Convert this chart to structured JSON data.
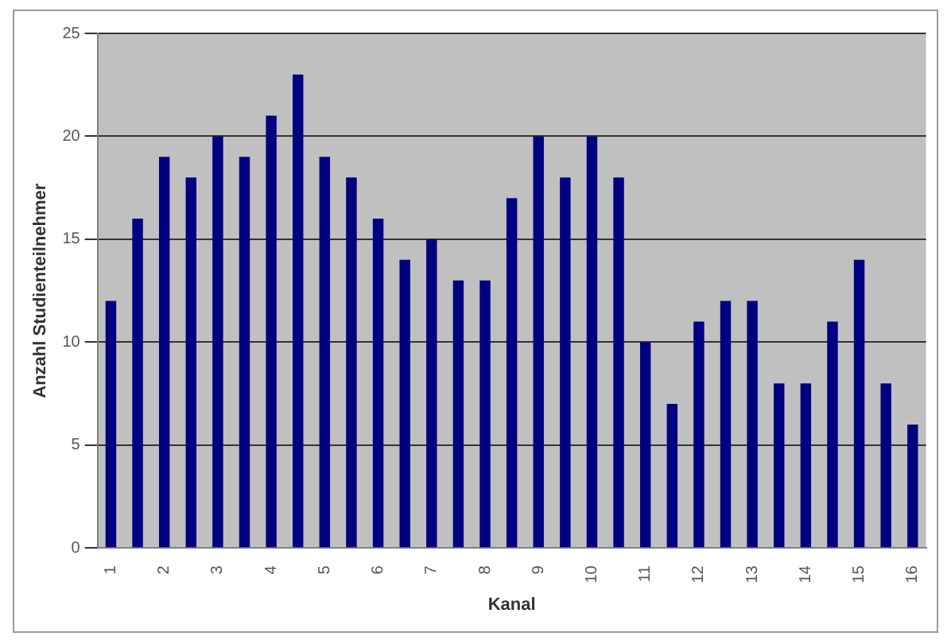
{
  "chart_data": {
    "type": "bar",
    "xlabel": "Kanal",
    "ylabel": "Anzahl Studienteilnehmer",
    "categories": [
      "1",
      null,
      "2",
      null,
      "3",
      null,
      "4",
      null,
      "5",
      null,
      "6",
      null,
      "7",
      null,
      "8",
      null,
      "9",
      null,
      "10",
      null,
      "11",
      null,
      "12",
      null,
      "13",
      null,
      "14",
      null,
      "15",
      null,
      "16"
    ],
    "values": [
      12,
      16,
      19,
      18,
      20,
      19,
      21,
      23,
      19,
      18,
      16,
      14,
      15,
      13,
      13,
      17,
      20,
      18,
      20,
      18,
      10,
      7,
      11,
      12,
      12,
      8,
      8,
      11,
      14,
      8,
      6
    ],
    "color": "#000080",
    "ylim": [
      0,
      25
    ],
    "yticks": [
      0,
      5,
      10,
      15,
      20,
      25
    ],
    "grid": "y",
    "legend": false
  }
}
